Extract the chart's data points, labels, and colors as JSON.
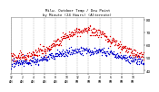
{
  "title_line1": "Milw. Outdoor Temp / Dew Point",
  "title_line2": "by Minute (24 Hours) (Alternate)",
  "bg_color": "#ffffff",
  "plot_bg_color": "#ffffff",
  "grid_color": "#aaaaaa",
  "temp_color": "#dd0000",
  "dew_color": "#0000cc",
  "ylim": [
    38,
    82
  ],
  "yticks": [
    40,
    50,
    60,
    70,
    80
  ],
  "ytick_labels": [
    "40",
    "50",
    "60",
    "70",
    "80"
  ],
  "ylabel_color": "#000000",
  "title_color": "#000000",
  "xlabel_color": "#000000",
  "n_points": 1440,
  "temp_peak": 72,
  "temp_min": 50,
  "dew_peak": 56,
  "dew_min": 43,
  "peak_time": 810,
  "noise_temp": 2.0,
  "noise_dew": 1.5,
  "dot_size": 1.0,
  "subsample": 4
}
